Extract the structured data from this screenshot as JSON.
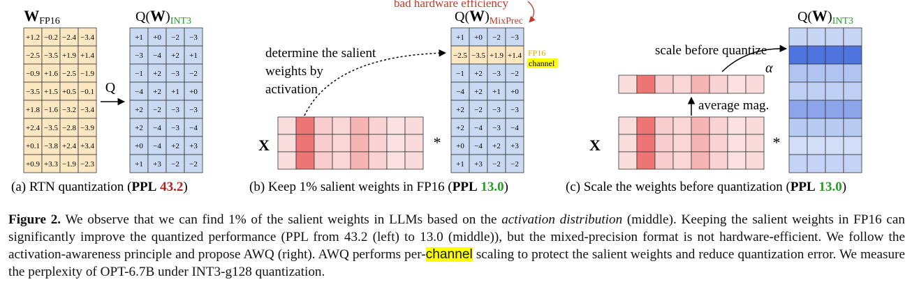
{
  "panel_a": {
    "title_main": "W",
    "title_sub": "FP16",
    "weights": [
      [
        "+1.2",
        "−0.2",
        "−2.4",
        "−3.4"
      ],
      [
        "−2.5",
        "−3.5",
        "+1.9",
        "+1.4"
      ],
      [
        "−0.9",
        "+1.6",
        "−2.5",
        "−1.9"
      ],
      [
        "−3.5",
        "+1.5",
        "+0.5",
        "−0.1"
      ],
      [
        "+1.8",
        "−1.6",
        "−3.2",
        "−3.4"
      ],
      [
        "+2.4",
        "−3.5",
        "−2.8",
        "−3.9"
      ],
      [
        "+0.1",
        "−3.8",
        "+2.4",
        "+3.4"
      ],
      [
        "+0.9",
        "+3.3",
        "−1.9",
        "−2.3"
      ]
    ],
    "arrow_label": "Q",
    "quant_title_q": "Q(",
    "quant_title_w": "W",
    "quant_title_close": ")",
    "quant_title_sub": "INT3",
    "quantized": [
      [
        "+1",
        "+0",
        "−2",
        "−3"
      ],
      [
        "−3",
        "−4",
        "+2",
        "+1"
      ],
      [
        "−1",
        "+2",
        "−3",
        "−2"
      ],
      [
        "−4",
        "+2",
        "+1",
        "+0"
      ],
      [
        "+2",
        "−2",
        "−3",
        "−3"
      ],
      [
        "+2",
        "−4",
        "−3",
        "−4"
      ],
      [
        "+0",
        "−4",
        "+2",
        "+3"
      ],
      [
        "+1",
        "+3",
        "−2",
        "−2"
      ]
    ],
    "caption_pre": "(a) RTN quantization (",
    "caption_ppl": "PPL",
    "caption_value": "43.2",
    "caption_post": ")"
  },
  "panel_b": {
    "annotation_top": "bad hardware efficiency",
    "annotation_lines": [
      "determine the salient",
      "weights by",
      "activation"
    ],
    "x_label": "X",
    "multiply": "*",
    "title_q": "Q(",
    "title_w": "W",
    "title_close": ")",
    "title_sub": "MixPrec",
    "fp16_label": "FP16",
    "channel_label": "channel",
    "weights": [
      [
        "+1",
        "+0",
        "−2",
        "−3"
      ],
      [
        "−2.5",
        "−3.5",
        "+1.9",
        "+1.4"
      ],
      [
        "−1",
        "+2",
        "−3",
        "−2"
      ],
      [
        "−4",
        "+2",
        "+1",
        "+0"
      ],
      [
        "+2",
        "−2",
        "−3",
        "−3"
      ],
      [
        "+2",
        "−4",
        "−3",
        "−4"
      ],
      [
        "+0",
        "−4",
        "+2",
        "+3"
      ],
      [
        "+1",
        "+3",
        "−2",
        "−2"
      ]
    ],
    "caption_pre": "(b) Keep 1% salient weights in FP16 (",
    "caption_ppl": "PPL",
    "caption_value": "13.0",
    "caption_post": ")"
  },
  "panel_c": {
    "scale_label": "scale before quantize",
    "alpha": "α",
    "avg_label": "average mag.",
    "x_label": "X",
    "multiply": "*",
    "title_q": "Q(",
    "title_w": "W",
    "title_close": ")",
    "title_sub": "INT3",
    "caption_pre": "(c) Scale the weights before quantization (",
    "caption_ppl": "PPL",
    "caption_value": "13.0",
    "caption_post": ")"
  },
  "activation": {
    "columns": 8,
    "rows": 3,
    "column_intensity": [
      0.1,
      0.85,
      0.22,
      0.15,
      0.4,
      0.18,
      0.08,
      0.12
    ]
  },
  "scaled_weight_rows": [
    0.15,
    0.95,
    0.3,
    0.2,
    0.55,
    0.25,
    0.08,
    0.18
  ],
  "colors": {
    "weight_fill": "#fbe8c3",
    "quant_fill": "#c9daf2",
    "highlight": "#ffff00",
    "fp16_text": "#e0a800",
    "ppl_bad": "#b22222",
    "ppl_good": "#22a022",
    "int3_green": "#22a022",
    "mixprec_red": "#c0392b"
  },
  "caption": {
    "label": "Figure 2.",
    "t1": " We observe that we can find 1% of the salient weights in LLMs based on the ",
    "t1_italic": "activation distribution",
    "t2": " (middle). Keeping the salient weights in FP16 can significantly improve the quantized performance (PPL from 43.2 (left) to 13.0 (middle)), but the mixed-precision format is not hardware-efficient. We follow the activation-awareness principle and propose AWQ (right). AWQ performs per-",
    "t2_highlight": "channel",
    "t3": " scaling to protect the salient weights and reduce quantization error. We measure the perplexity of OPT-6.7B under INT3-g128 quantization."
  }
}
